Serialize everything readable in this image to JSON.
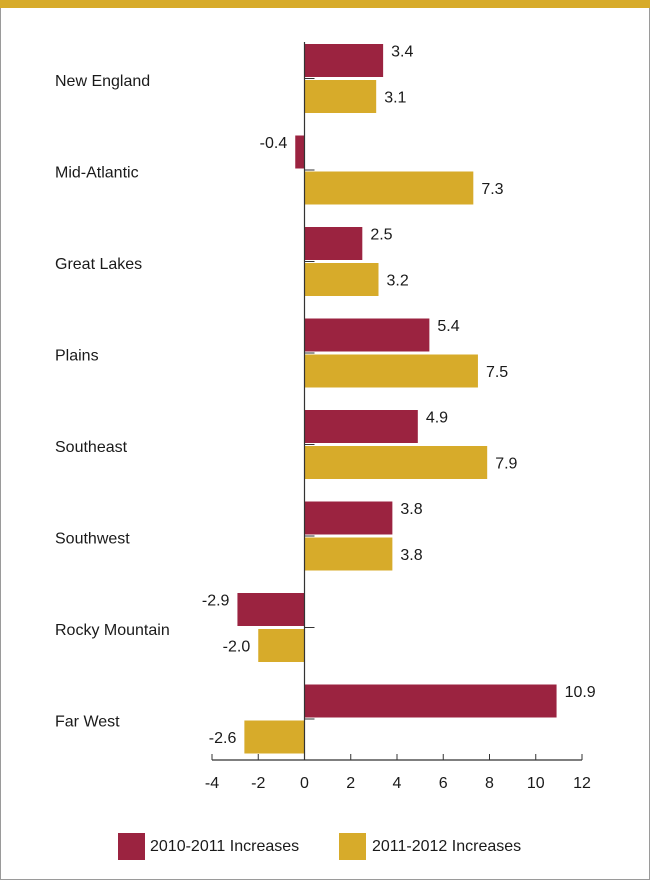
{
  "colors": {
    "series1": "#9b2340",
    "series2": "#d7ab2a",
    "topbar": "#d7ab2a",
    "axis": "#333333"
  },
  "chart_data": {
    "type": "bar",
    "orientation": "horizontal",
    "categories": [
      "New England",
      "Mid-Atlantic",
      "Great Lakes",
      "Plains",
      "Southeast",
      "Southwest",
      "Rocky Mountain",
      "Far West"
    ],
    "series": [
      {
        "name": "2010-2011 Increases",
        "values": [
          3.4,
          -0.4,
          2.5,
          5.4,
          4.9,
          3.8,
          -2.9,
          10.9
        ]
      },
      {
        "name": "2011-2012 Increases",
        "values": [
          3.1,
          7.3,
          3.2,
          7.5,
          7.9,
          3.8,
          -2.0,
          -2.6
        ]
      }
    ],
    "value_labels": [
      [
        "3.4",
        "-0.4",
        "2.5",
        "5.4",
        "4.9",
        "3.8",
        "-2.9",
        "10.9"
      ],
      [
        "3.1",
        "7.3",
        "3.2",
        "7.5",
        "7.9",
        "3.8",
        "-2.0",
        "-2.6"
      ]
    ],
    "xlim": [
      -4,
      12
    ],
    "xticks": [
      "-4",
      "-2",
      "0",
      "2",
      "4",
      "6",
      "8",
      "10",
      "12"
    ],
    "grid": false,
    "legend_position": "bottom",
    "title": "",
    "xlabel": "",
    "ylabel": ""
  }
}
